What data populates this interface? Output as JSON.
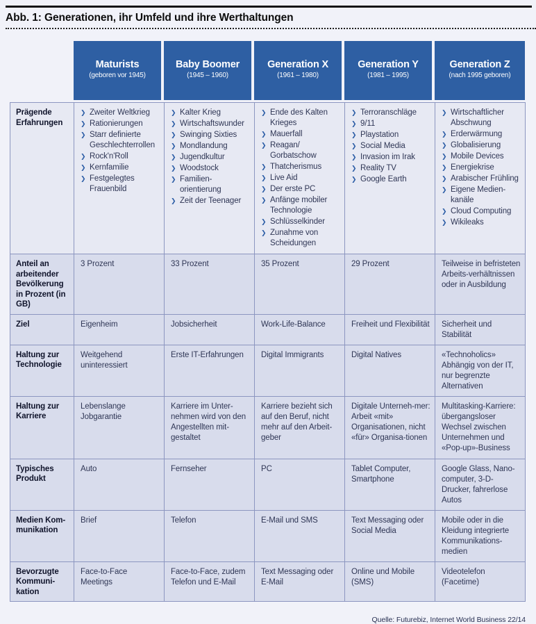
{
  "title": "Abb. 1: Generationen, ihr Umfeld und ihre Werthaltungen",
  "source": "Quelle: Futurebiz, Internet World Business 22/14",
  "colors": {
    "header_bg": "#2e5fa3",
    "row_bg": "#d8dcec",
    "first_row_bg": "#e7e9f3",
    "border": "#8c96c0",
    "bullet": "#2d5ea6",
    "page_bg": "#f1f2f9"
  },
  "bullet_icon": "chevron-right-icon",
  "table": {
    "columns": [
      {
        "name": "Maturists",
        "sub": "(geboren vor 1945)"
      },
      {
        "name": "Baby Boomer",
        "sub": "(1945 – 1960)"
      },
      {
        "name": "Generation X",
        "sub": "(1961 – 1980)"
      },
      {
        "name": "Generation Y",
        "sub": "(1981 – 1995)"
      },
      {
        "name": "Generation Z",
        "sub": "(nach 1995 geboren)"
      }
    ],
    "rows": [
      {
        "label": "Prägende Erfahrungen",
        "type": "list",
        "cells": [
          [
            "Zweiter Weltkrieg",
            "Rationierungen",
            "Starr definierte Geschlechterrollen",
            "Rock'n'Roll",
            "Kernfamilie",
            "Festgelegtes Frauenbild"
          ],
          [
            "Kalter Krieg",
            "Wirtschaftswunder",
            "Swinging Sixties",
            "Mondlandung",
            "Jugendkultur",
            "Woodstock",
            "Familien-orientierung",
            "Zeit der Teenager"
          ],
          [
            "Ende des Kalten Krieges",
            "Mauerfall",
            "Reagan/ Gorbatschow",
            "Thatcherismus",
            "Live Aid",
            "Der erste PC",
            "Anfänge mobiler Technologie",
            "Schlüsselkinder",
            "Zunahme von Scheidungen"
          ],
          [
            "Terroranschläge",
            "9/11",
            "Playstation",
            "Social Media",
            "Invasion im Irak",
            "Reality TV",
            "Google Earth"
          ],
          [
            "Wirtschaftlicher Abschwung",
            "Erderwärmung",
            "Globalisierung",
            "Mobile Devices",
            "Energiekrise",
            "Arabischer Frühling",
            "Eigene Medien-kanäle",
            "Cloud Computing",
            "Wikileaks"
          ]
        ]
      },
      {
        "label": "Anteil an arbeitender Bevölkerung in Prozent (in GB)",
        "type": "text",
        "cells": [
          "3 Prozent",
          "33 Prozent",
          "35 Prozent",
          "29 Prozent",
          "Teilweise in befristeten Arbeits-verhältnissen oder in Ausbildung"
        ]
      },
      {
        "label": "Ziel",
        "type": "text",
        "cells": [
          "Eigenheim",
          "Jobsicherheit",
          "Work-Life-Balance",
          "Freiheit und Flexibilität",
          "Sicherheit und Stabilität"
        ]
      },
      {
        "label": "Haltung zur Technologie",
        "type": "text",
        "cells": [
          "Weitgehend uninteressiert",
          "Erste IT-Erfahrungen",
          "Digital Immigrants",
          "Digital Natives",
          "«Technoholics» Abhängig von der IT, nur begrenzte Alternativen"
        ]
      },
      {
        "label": "Haltung zur Karriere",
        "type": "text",
        "cells": [
          "Lebenslange Jobgarantie",
          "Karriere im Unter-nehmen wird von den Angestellten mit-gestaltet",
          "Karriere bezieht sich auf den Beruf, nicht mehr auf den Arbeit-geber",
          "Digitale Unterneh-mer: Arbeit «mit» Organisationen, nicht «für» Organisa-tionen",
          "Multitasking-Karriere: übergangsloser Wechsel zwischen Unternehmen und «Pop-up»-Business"
        ]
      },
      {
        "label": "Typisches Produkt",
        "type": "text",
        "cells": [
          "Auto",
          "Fernseher",
          "PC",
          "Tablet Computer, Smartphone",
          "Google Glass, Nano-computer, 3-D-Drucker, fahrerlose Autos"
        ]
      },
      {
        "label": "Medien Kom-munikation",
        "type": "text",
        "cells": [
          "Brief",
          "Telefon",
          "E-Mail und SMS",
          "Text Messaging oder Social Media",
          "Mobile oder in die Kleidung integrierte Kommunikations-medien"
        ]
      },
      {
        "label": "Bevorzugte Kommuni-kation",
        "type": "text",
        "cells": [
          "Face-to-Face Meetings",
          "Face-to-Face, zudem Telefon und E-Mail",
          "Text Messaging oder E-Mail",
          "Online und Mobile (SMS)",
          "Videotelefon (Facetime)"
        ]
      }
    ]
  }
}
